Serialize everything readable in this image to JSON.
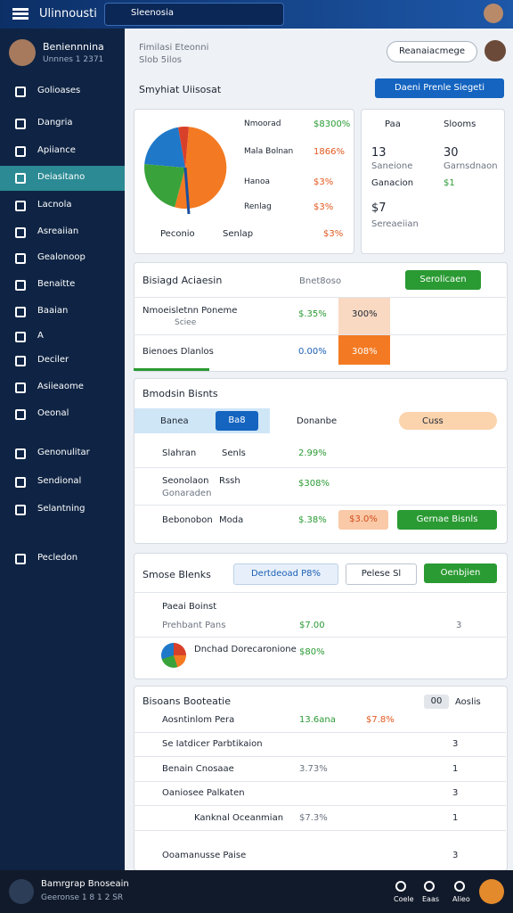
{
  "topbar": {
    "brand": "Ulinnousti",
    "search": "Sleenosia"
  },
  "sidebar": {
    "user": {
      "name": "Beniennnina",
      "sub": "Unnnes 1 2371"
    },
    "items": [
      "Golioases",
      "Dangria",
      "Apiiance",
      "Deiasitano",
      "Lacnola",
      "Asreaiian",
      "Gealonoop",
      "Benaitte",
      "Baaian",
      "A",
      "Deciler",
      "Asiieaome",
      "Oeonal",
      "Genonulitar",
      "Sendional",
      "Selantning",
      "Pecledon"
    ]
  },
  "header": {
    "title": "Fimilasi Eteonni",
    "subtitle": "Slob 5ilos",
    "button": "Reanaiacmege"
  },
  "section": {
    "title": "Smyhiat Uiisosat",
    "button": "Daeni Prenle Siegeti"
  },
  "summary": {
    "rows": [
      [
        "Nmoorad",
        "$8300%"
      ],
      [
        "Mala Bolnan",
        "1866%"
      ],
      [
        "Hanoa",
        "$3%"
      ],
      [
        "Renlag",
        "$3%"
      ]
    ],
    "legend": [
      "Peconio",
      "Senlap",
      "$3%"
    ]
  },
  "stats": {
    "head": [
      "Paa",
      "Slooms"
    ],
    "values": [
      "13",
      "30"
    ],
    "labels": [
      "Saneione",
      "Garnsdnaon"
    ],
    "extra": [
      "Ganacion",
      "$1"
    ],
    "big": "$7",
    "bigLabel": "Sereaeiian"
  },
  "activity": {
    "title": "Bisiagd Aciaesin",
    "filter": "Bnet8oso",
    "button": "Serolicaen",
    "rows": [
      {
        "name": "Nmoeisletnn Poneme",
        "sub": "Sciee",
        "a": "$.35%",
        "b": "300%"
      },
      {
        "name": "Bienoes Dlanlos",
        "a": "0.00%",
        "b": "308%"
      }
    ]
  },
  "budgets": {
    "title": "Bmodsin Bisnts",
    "tabs": [
      "Banea",
      "Ba8",
      "Donanbe",
      "Cuss"
    ],
    "rows": [
      {
        "name": "Slahran",
        "sub": "Senls",
        "a": "2.99%"
      },
      {
        "name": "Seonolaon",
        "sub": "Rssh",
        "sub2": "Gonaraden",
        "a": "$308%"
      },
      {
        "name": "Bebonobon",
        "sub": "Moda",
        "a": "$.38%",
        "b": "$3.0%",
        "button": "Gernae Bisnls"
      }
    ]
  },
  "stocks": {
    "title": "Smose Blenks",
    "select": "Dertdeoad P8%",
    "filter": "Pelese Sl",
    "button": "Oenbjien",
    "rows": [
      {
        "name": "Paeai Boinst"
      },
      {
        "name": "Prehbant Pans",
        "a": "$7.00",
        "b": "3"
      },
      {
        "name": "Dnchad Dorecaronione",
        "a": "$80%"
      }
    ]
  },
  "bottomList": {
    "title": "Bisoans Booteatie",
    "badge": "00",
    "action": "Aoslis",
    "rows": [
      {
        "name": "Aosntinlom Pera",
        "a": "13.6ana",
        "b": "$7.8%"
      },
      {
        "name": "Se Iatdicer Parbtikaion",
        "c": "3"
      },
      {
        "name": "Benain Cnosaae",
        "a": "3.73%",
        "c": "1"
      },
      {
        "name": "Oaniosee Palkaten",
        "c": "3"
      },
      {
        "name": "Kanknal Oceanmian",
        "a": "$7.3%",
        "c": "1"
      },
      {
        "name": "Ooamanusse Paise",
        "c": "3"
      }
    ]
  },
  "footer": {
    "name": "Bamrgrap Bnoseain",
    "sub": "Geeronse 1 8 1 2 SR",
    "icons": [
      "Coele",
      "Eaas",
      "Alieo"
    ]
  }
}
